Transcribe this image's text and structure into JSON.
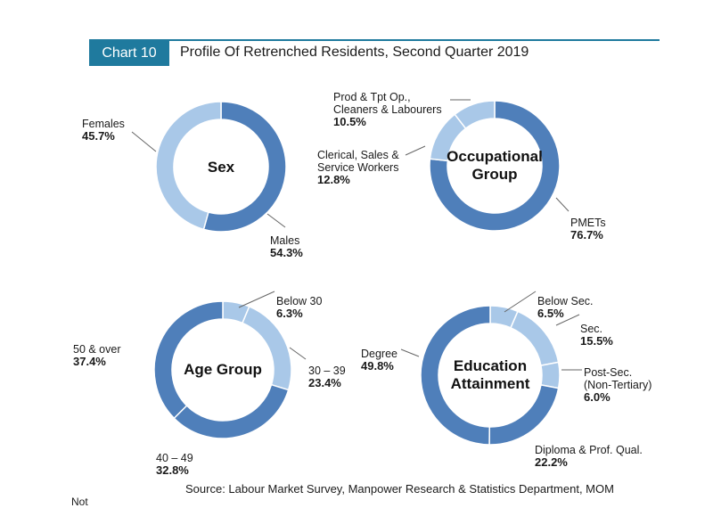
{
  "header": {
    "badge": "Chart 10",
    "title": "Profile Of Retrenched Residents, Second Quarter 2019"
  },
  "colors": {
    "accent": "#1f7a9e",
    "dark_segment": "#4f7fba",
    "light_segment": "#a9c8e8"
  },
  "chart_data": [
    {
      "type": "pie",
      "center_label": "Sex",
      "slices": [
        {
          "label": "Males",
          "value": 54.3,
          "pct_text": "54.3%",
          "color": "#4f7fba"
        },
        {
          "label": "Females",
          "value": 45.7,
          "pct_text": "45.7%",
          "color": "#a9c8e8"
        }
      ]
    },
    {
      "type": "pie",
      "center_label": "Occupational\nGroup",
      "slices": [
        {
          "label": "PMETs",
          "value": 76.7,
          "pct_text": "76.7%",
          "color": "#4f7fba"
        },
        {
          "label": "Clerical, Sales &\nService Workers",
          "value": 12.8,
          "pct_text": "12.8%",
          "color": "#a9c8e8"
        },
        {
          "label": "Prod & Tpt Op.,\nCleaners & Labourers",
          "value": 10.5,
          "pct_text": "10.5%",
          "color": "#a9c8e8"
        }
      ]
    },
    {
      "type": "pie",
      "center_label": "Age Group",
      "slices": [
        {
          "label": "Below 30",
          "value": 6.3,
          "pct_text": "6.3%",
          "color": "#a9c8e8"
        },
        {
          "label": "30 – 39",
          "value": 23.4,
          "pct_text": "23.4%",
          "color": "#a9c8e8"
        },
        {
          "label": "40 – 49",
          "value": 32.8,
          "pct_text": "32.8%",
          "color": "#4f7fba"
        },
        {
          "label": "50 & over",
          "value": 37.4,
          "pct_text": "37.4%",
          "color": "#4f7fba"
        }
      ]
    },
    {
      "type": "pie",
      "center_label": "Education\nAttainment",
      "slices": [
        {
          "label": "Below Sec.",
          "value": 6.5,
          "pct_text": "6.5%",
          "color": "#a9c8e8"
        },
        {
          "label": "Sec.",
          "value": 15.5,
          "pct_text": "15.5%",
          "color": "#a9c8e8"
        },
        {
          "label": "Post-Sec.\n(Non-Tertiary)",
          "value": 6.0,
          "pct_text": "6.0%",
          "color": "#a9c8e8"
        },
        {
          "label": "Diploma  & Prof. Qual.",
          "value": 22.2,
          "pct_text": "22.2%",
          "color": "#4f7fba"
        },
        {
          "label": "Degree",
          "value": 49.8,
          "pct_text": "49.8%",
          "color": "#4f7fba"
        }
      ]
    }
  ],
  "footer": {
    "source": "Source: Labour Market Survey, Manpower Research & Statistics Department, MOM",
    "notes_cut": "Not"
  }
}
